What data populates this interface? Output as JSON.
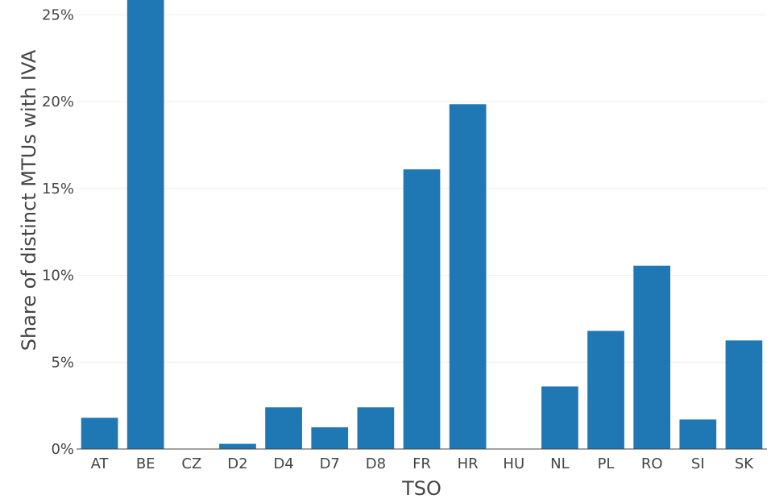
{
  "chart_data": {
    "type": "bar",
    "xlabel": "TSO",
    "ylabel": "Share of distinct MTUs with IVA",
    "categories": [
      "AT",
      "BE",
      "CZ",
      "D2",
      "D4",
      "D7",
      "D8",
      "FR",
      "HR",
      "HU",
      "NL",
      "PL",
      "RO",
      "SI",
      "SK"
    ],
    "values": [
      1.8,
      26.0,
      0,
      0.3,
      2.4,
      1.25,
      2.4,
      16.1,
      19.85,
      0,
      3.6,
      6.8,
      10.55,
      1.7,
      6.25
    ],
    "value_unit": "%",
    "ylim": [
      0,
      25.85
    ],
    "yticks": [
      0,
      5,
      10,
      15,
      20,
      25
    ],
    "ytick_labels": [
      "0%",
      "5%",
      "10%",
      "15%",
      "20%",
      "25%"
    ],
    "grid": true,
    "bar_color": "#1f77b4"
  }
}
